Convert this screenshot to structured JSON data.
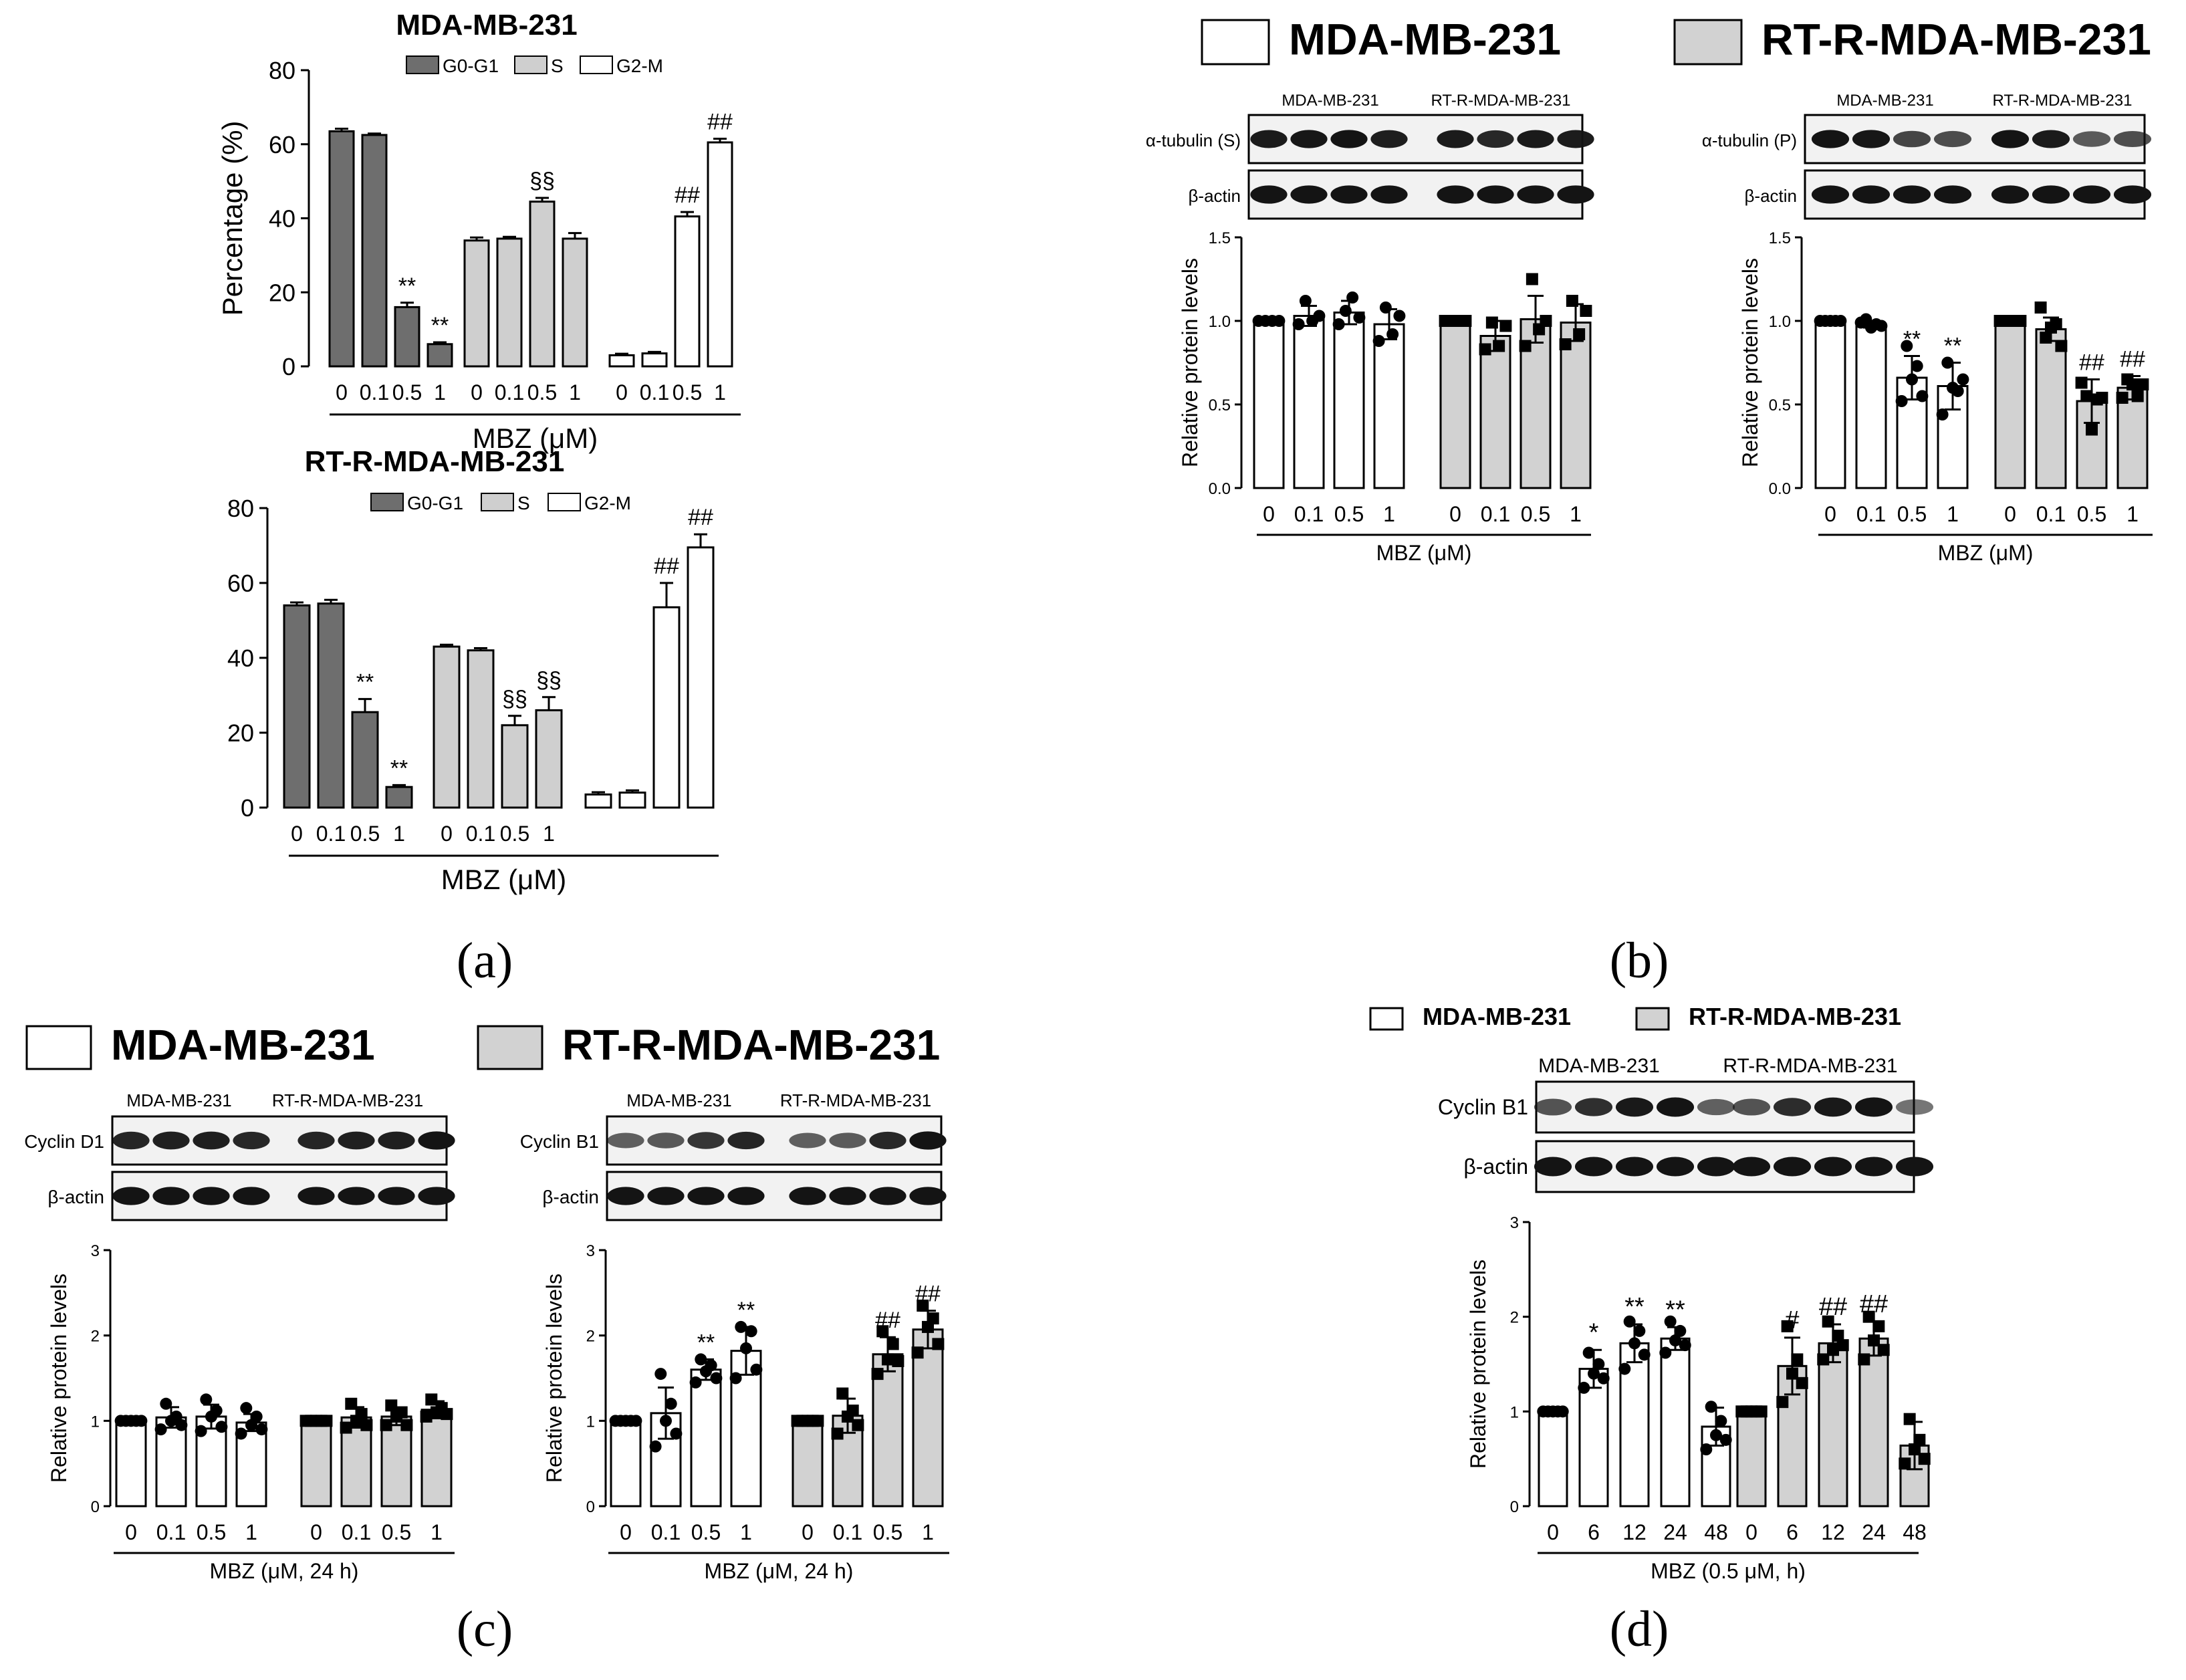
{
  "colors": {
    "g0": "#6e6e6e",
    "s": "#cfcfcf",
    "g2": "#ffffff",
    "mda": "#ffffff",
    "rtr": "#d2d2d2",
    "blot_band": "#141414",
    "blot_bg": "#f2f2f2"
  },
  "panel_labels": [
    "(a)",
    "(b)",
    "(c)",
    "(d)"
  ],
  "chart_data": [
    {
      "id": "a1",
      "type": "bar",
      "title": "MDA-MB-231",
      "xlabel": "MBZ (μM)",
      "ylabel": "Percentage (%)",
      "ylim": [
        0,
        80
      ],
      "yticks": [
        "0",
        "20",
        "40",
        "60",
        "80"
      ],
      "legend": [
        "G0-G1",
        "S",
        "G2-M"
      ],
      "legend_position": "top",
      "categories": [
        "0",
        "0.1",
        "0.5",
        "1"
      ],
      "group_tick_labels": [
        [
          "0",
          "0.1",
          "0.5",
          "1"
        ],
        [
          "0",
          "0.1",
          "0.5",
          "1"
        ],
        [
          "0",
          "0.1",
          "0.5",
          "1"
        ]
      ],
      "series": [
        {
          "name": "G0-G1",
          "values": [
            63.5,
            62.5,
            16,
            6
          ],
          "errors": [
            0.7,
            0.4,
            1.2,
            0.5
          ],
          "annotations": [
            "",
            "",
            "**",
            "**"
          ]
        },
        {
          "name": "S",
          "values": [
            34,
            34.5,
            44.5,
            34.5
          ],
          "errors": [
            0.8,
            0.5,
            1.0,
            1.5
          ],
          "annotations": [
            "",
            "",
            "§§",
            ""
          ]
        },
        {
          "name": "G2-M",
          "values": [
            3,
            3.5,
            40.5,
            60.5
          ],
          "errors": [
            0.4,
            0.4,
            1.2,
            1.0
          ],
          "annotations": [
            "",
            "",
            "##",
            "##"
          ]
        }
      ]
    },
    {
      "id": "a2",
      "type": "bar",
      "title": "RT-R-MDA-MB-231",
      "xlabel": "MBZ (μM)",
      "ylim": [
        0,
        80
      ],
      "yticks": [
        "0",
        "20",
        "40",
        "60",
        "80"
      ],
      "legend": [
        "G0-G1",
        "S",
        "G2-M"
      ],
      "legend_position": "top",
      "categories": [
        "0",
        "0.1",
        "0.5",
        "1"
      ],
      "group_tick_labels": [
        [
          "0",
          "0.1",
          "0.5",
          "1"
        ],
        [
          "0",
          "0.1",
          "0.5",
          "1"
        ]
      ],
      "series": [
        {
          "name": "G0-G1",
          "values": [
            54,
            54.5,
            25.5,
            5.5
          ],
          "errors": [
            0.8,
            1.0,
            3.5,
            0.5
          ],
          "annotations": [
            "",
            "",
            "**",
            "**"
          ]
        },
        {
          "name": "S",
          "values": [
            43,
            42,
            22,
            26
          ],
          "errors": [
            0.5,
            0.6,
            2.5,
            3.5
          ],
          "annotations": [
            "",
            "",
            "§§",
            "§§"
          ]
        },
        {
          "name": "G2-M",
          "values": [
            3.5,
            4,
            53.5,
            69.5
          ],
          "errors": [
            0.6,
            0.6,
            6.5,
            3.5
          ],
          "annotations": [
            "",
            "",
            "##",
            "##"
          ]
        }
      ]
    },
    {
      "id": "b1",
      "type": "bar",
      "ylabel": "Relative protein levels",
      "xlabel": "MBZ (μM)",
      "ylim": [
        0,
        1.5
      ],
      "yticks": [
        "0.0",
        "0.5",
        "1.0",
        "1.5"
      ],
      "legend": [
        "MDA-MB-231",
        "RT-R-MDA-MB-231"
      ],
      "legend_position": "top",
      "categories": [
        "0",
        "0.1",
        "0.5",
        "1"
      ],
      "blot": {
        "lanes_headers": [
          "MDA-MB-231",
          "RT-R-MDA-MB-231"
        ],
        "rows": [
          "α-tubulin (S)",
          "β-actin"
        ]
      },
      "series": [
        {
          "name": "MDA-MB-231",
          "values": [
            1.0,
            1.03,
            1.05,
            0.98
          ],
          "errors": [
            0.01,
            0.06,
            0.07,
            0.09
          ],
          "annotations": [
            "",
            "",
            "",
            ""
          ],
          "points": [
            [
              1.0,
              1.0,
              1.0,
              1.0
            ],
            [
              0.98,
              1.12,
              1.0,
              1.03
            ],
            [
              0.98,
              1.06,
              1.14,
              1.02
            ],
            [
              0.88,
              1.08,
              0.92,
              1.03
            ]
          ]
        },
        {
          "name": "RT-R-MDA-MB-231",
          "values": [
            1.0,
            0.91,
            1.01,
            0.99
          ],
          "errors": [
            0.01,
            0.09,
            0.14,
            0.11
          ],
          "annotations": [
            "",
            "",
            "",
            ""
          ],
          "points": [
            [
              1.0,
              1.0,
              1.0,
              1.0
            ],
            [
              0.83,
              0.99,
              0.85,
              0.97
            ],
            [
              0.85,
              1.25,
              0.95,
              1.0
            ],
            [
              0.86,
              1.12,
              0.92,
              1.06
            ]
          ]
        }
      ]
    },
    {
      "id": "b2",
      "type": "bar",
      "ylabel": "Relative protein levels",
      "xlabel": "MBZ (μM)",
      "ylim": [
        0,
        1.5
      ],
      "yticks": [
        "0.0",
        "0.5",
        "1.0",
        "1.5"
      ],
      "categories": [
        "0",
        "0.1",
        "0.5",
        "1"
      ],
      "blot": {
        "lanes_headers": [
          "MDA-MB-231",
          "RT-R-MDA-MB-231"
        ],
        "rows": [
          "α-tubulin (P)",
          "β-actin"
        ]
      },
      "series": [
        {
          "name": "MDA-MB-231",
          "values": [
            1.0,
            0.98,
            0.66,
            0.61
          ],
          "errors": [
            0.01,
            0.02,
            0.13,
            0.14
          ],
          "annotations": [
            "",
            "",
            "**",
            "**"
          ],
          "points": [
            [
              1.0,
              1.0,
              1.0,
              1.0,
              1.0
            ],
            [
              0.99,
              1.01,
              0.96,
              0.98,
              0.97
            ],
            [
              0.52,
              0.85,
              0.65,
              0.73,
              0.55
            ],
            [
              0.44,
              0.75,
              0.6,
              0.58,
              0.65
            ]
          ]
        },
        {
          "name": "RT-R-MDA-MB-231",
          "values": [
            1.0,
            0.95,
            0.52,
            0.6
          ],
          "errors": [
            0.01,
            0.07,
            0.13,
            0.07
          ],
          "annotations": [
            "",
            "",
            "##",
            "##"
          ],
          "points": [
            [
              1.0,
              1.0,
              1.0,
              1.0,
              1.0
            ],
            [
              1.08,
              0.9,
              0.96,
              0.98,
              0.85
            ],
            [
              0.63,
              0.55,
              0.35,
              0.53,
              0.54
            ],
            [
              0.54,
              0.65,
              0.62,
              0.55,
              0.62
            ]
          ]
        }
      ]
    },
    {
      "id": "c1",
      "type": "bar",
      "ylabel": "Relative protein levels",
      "xlabel": "MBZ (μM, 24 h)",
      "ylim": [
        0,
        3
      ],
      "yticks": [
        "0",
        "1",
        "2",
        "3"
      ],
      "legend": [
        "MDA-MB-231",
        "RT-R-MDA-MB-231"
      ],
      "legend_position": "top",
      "categories": [
        "0",
        "0.1",
        "0.5",
        "1"
      ],
      "blot": {
        "lanes_headers": [
          "MDA-MB-231",
          "RT-R-MDA-MB-231"
        ],
        "rows": [
          "Cyclin D1",
          "β-actin"
        ]
      },
      "series": [
        {
          "name": "MDA-MB-231",
          "values": [
            1.0,
            1.04,
            1.05,
            0.98
          ],
          "errors": [
            0.01,
            0.12,
            0.14,
            0.1
          ],
          "annotations": [
            "",
            "",
            "",
            ""
          ],
          "points": [
            [
              1.0,
              1.0,
              1.0,
              1.0,
              1.0
            ],
            [
              0.9,
              1.2,
              1.0,
              1.05,
              0.95
            ],
            [
              0.88,
              1.25,
              1.05,
              1.12,
              0.93
            ],
            [
              0.85,
              1.15,
              0.95,
              1.05,
              0.9
            ]
          ]
        },
        {
          "name": "RT-R-MDA-MB-231",
          "values": [
            1.0,
            1.04,
            1.05,
            1.13
          ],
          "errors": [
            0.01,
            0.12,
            0.1,
            0.1
          ],
          "annotations": [
            "",
            "",
            "",
            ""
          ],
          "points": [
            [
              1.0,
              1.0,
              1.0,
              1.0,
              1.0
            ],
            [
              0.92,
              1.2,
              1.0,
              1.08,
              0.95
            ],
            [
              0.95,
              1.18,
              1.05,
              1.1,
              0.95
            ],
            [
              1.05,
              1.25,
              1.1,
              1.15,
              1.08
            ]
          ]
        }
      ]
    },
    {
      "id": "c2",
      "type": "bar",
      "ylabel": "Relative protein levels",
      "xlabel": "MBZ (μM, 24 h)",
      "ylim": [
        0,
        3
      ],
      "yticks": [
        "0",
        "1",
        "2",
        "3"
      ],
      "legend": [
        "MDA-MB-231",
        "RT-R-MDA-MB-231"
      ],
      "legend_position": "top",
      "categories": [
        "0",
        "0.1",
        "0.5",
        "1"
      ],
      "blot": {
        "lanes_headers": [
          "MDA-MB-231",
          "RT-R-MDA-MB-231"
        ],
        "rows": [
          "Cyclin B1",
          "β-actin"
        ]
      },
      "series": [
        {
          "name": "MDA-MB-231",
          "values": [
            1.0,
            1.09,
            1.6,
            1.82
          ],
          "errors": [
            0.01,
            0.3,
            0.12,
            0.28
          ],
          "annotations": [
            "",
            "",
            "**",
            "**"
          ],
          "points": [
            [
              1.0,
              1.0,
              1.0,
              1.0,
              1.0
            ],
            [
              0.7,
              1.55,
              1.0,
              1.2,
              0.85
            ],
            [
              1.45,
              1.72,
              1.58,
              1.65,
              1.5
            ],
            [
              1.5,
              2.1,
              1.85,
              2.05,
              1.6
            ]
          ]
        },
        {
          "name": "RT-R-MDA-MB-231",
          "values": [
            1.0,
            1.06,
            1.78,
            2.07
          ],
          "errors": [
            0.01,
            0.2,
            0.2,
            0.22
          ],
          "annotations": [
            "",
            "",
            "##",
            "##"
          ],
          "points": [
            [
              1.0,
              1.0,
              1.0,
              1.0,
              1.0
            ],
            [
              0.85,
              1.32,
              1.05,
              1.12,
              0.95
            ],
            [
              1.55,
              2.05,
              1.72,
              1.9,
              1.7
            ],
            [
              1.8,
              2.35,
              2.1,
              2.2,
              1.9
            ]
          ]
        }
      ]
    },
    {
      "id": "d1",
      "type": "bar",
      "ylabel": "Relative protein levels",
      "xlabel": "MBZ (0.5 μM, h)",
      "ylim": [
        0,
        3
      ],
      "yticks": [
        "0",
        "1",
        "2",
        "3"
      ],
      "legend": [
        "MDA-MB-231",
        "RT-R-MDA-MB-231"
      ],
      "legend_position": "top",
      "categories": [
        "0",
        "6",
        "12",
        "24",
        "48"
      ],
      "blot": {
        "lanes_headers": [
          "MDA-MB-231",
          "RT-R-MDA-MB-231"
        ],
        "rows": [
          "Cyclin B1",
          "β-actin"
        ]
      },
      "series": [
        {
          "name": "MDA-MB-231",
          "values": [
            1.0,
            1.45,
            1.72,
            1.77,
            0.84
          ],
          "errors": [
            0.01,
            0.2,
            0.2,
            0.12,
            0.2
          ],
          "annotations": [
            "",
            "*",
            "**",
            "**",
            ""
          ],
          "points": [
            [
              1.0,
              1.0,
              1.0,
              1.0,
              1.0
            ],
            [
              1.25,
              1.62,
              1.4,
              1.5,
              1.35
            ],
            [
              1.45,
              1.95,
              1.72,
              1.85,
              1.6
            ],
            [
              1.62,
              1.95,
              1.75,
              1.85,
              1.7
            ],
            [
              0.6,
              1.05,
              0.75,
              0.9,
              0.7
            ]
          ]
        },
        {
          "name": "RT-R-MDA-MB-231",
          "values": [
            1.0,
            1.48,
            1.72,
            1.77,
            0.64
          ],
          "errors": [
            0.01,
            0.3,
            0.2,
            0.18,
            0.25
          ],
          "annotations": [
            "",
            "#",
            "##",
            "##",
            ""
          ],
          "points": [
            [
              1.0,
              1.0,
              1.0,
              1.0,
              1.0
            ],
            [
              1.1,
              1.9,
              1.4,
              1.55,
              1.3
            ],
            [
              1.55,
              1.95,
              1.65,
              1.8,
              1.7
            ],
            [
              1.55,
              2.0,
              1.75,
              1.9,
              1.65
            ],
            [
              0.45,
              0.92,
              0.6,
              0.7,
              0.5
            ]
          ]
        }
      ]
    }
  ]
}
